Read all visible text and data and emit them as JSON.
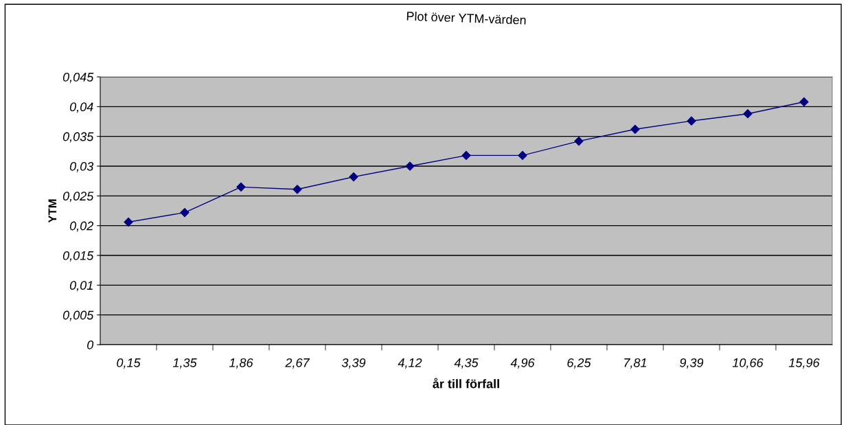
{
  "chart_data": {
    "type": "line",
    "title": "Plot över YTM-värden",
    "xlabel": "år till förfall",
    "ylabel": "YTM",
    "categories": [
      "0,15",
      "1,35",
      "1,86",
      "2,67",
      "3,39",
      "4,12",
      "4,35",
      "4,96",
      "6,25",
      "7,81",
      "9,39",
      "10,66",
      "15,96"
    ],
    "series": [
      {
        "color": "#000080",
        "values": [
          0.0206,
          0.0222,
          0.0265,
          0.0261,
          0.0282,
          0.03,
          0.0318,
          0.0318,
          0.0342,
          0.0362,
          0.0376,
          0.0388,
          0.0408
        ]
      }
    ],
    "ylim": [
      0,
      0.045
    ],
    "yticks": [
      {
        "value": 0,
        "label": "0"
      },
      {
        "value": 0.005,
        "label": "0,005"
      },
      {
        "value": 0.01,
        "label": "0,01"
      },
      {
        "value": 0.015,
        "label": "0,015"
      },
      {
        "value": 0.02,
        "label": "0,02"
      },
      {
        "value": 0.025,
        "label": "0,025"
      },
      {
        "value": 0.03,
        "label": "0,03"
      },
      {
        "value": 0.035,
        "label": "0,035"
      },
      {
        "value": 0.04,
        "label": "0,04"
      },
      {
        "value": 0.045,
        "label": "0,045"
      }
    ],
    "grid": "y",
    "marker": "diamond",
    "line_style": "solid",
    "legend": false
  }
}
